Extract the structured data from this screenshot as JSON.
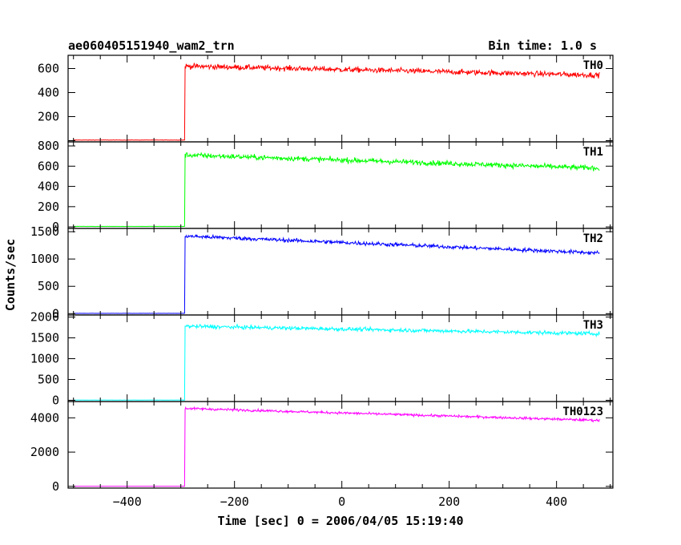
{
  "chart_data": {
    "type": "line",
    "title": "ae060405151940_wam2_trn",
    "bin_time": "Bin time: 1.0 s",
    "xlabel": "Time [sec] 0 = 2006/04/05 15:19:40",
    "ylabel": "Counts/sec",
    "xlim": [
      -510,
      505
    ],
    "x_ticks": [
      -400,
      -200,
      0,
      200,
      400
    ],
    "grid": false,
    "x_start": -500,
    "x_end": 480,
    "trigger_time": -292,
    "series": [
      {
        "name": "TH0",
        "color": "#ff0000",
        "ylim": [
          -10,
          710
        ],
        "y_ticks": [
          0,
          200,
          400,
          600
        ],
        "y_tick_labels": [
          "",
          "200",
          "400",
          "600"
        ],
        "baseline": 5,
        "level_start": 620,
        "level_end": 545,
        "noise": 22
      },
      {
        "name": "TH1",
        "color": "#00ff00",
        "ylim": [
          -15,
          840
        ],
        "y_ticks": [
          0,
          200,
          400,
          600,
          800
        ],
        "y_tick_labels": [
          "0",
          "200",
          "400",
          "600",
          "800"
        ],
        "baseline": 5,
        "level_start": 710,
        "level_end": 580,
        "noise": 25
      },
      {
        "name": "TH2",
        "color": "#0000ff",
        "ylim": [
          -25,
          1560
        ],
        "y_ticks": [
          0,
          500,
          1000,
          1500
        ],
        "y_tick_labels": [
          "0",
          "500",
          "1000",
          "1500"
        ],
        "baseline": 5,
        "level_start": 1420,
        "level_end": 1110,
        "noise": 35
      },
      {
        "name": "TH3",
        "color": "#00ffff",
        "ylim": [
          -30,
          2050
        ],
        "y_ticks": [
          0,
          500,
          1000,
          1500,
          2000
        ],
        "y_tick_labels": [
          "0",
          "500",
          "1000",
          "1500",
          "2000"
        ],
        "baseline": 5,
        "level_start": 1780,
        "level_end": 1600,
        "noise": 45
      },
      {
        "name": "TH0123",
        "color": "#ff00ff",
        "ylim": [
          -100,
          4950
        ],
        "y_ticks": [
          0,
          2000,
          4000
        ],
        "y_tick_labels": [
          "0",
          "2000",
          "4000"
        ],
        "baseline": 5,
        "level_start": 4550,
        "level_end": 3850,
        "noise": 70
      }
    ]
  }
}
